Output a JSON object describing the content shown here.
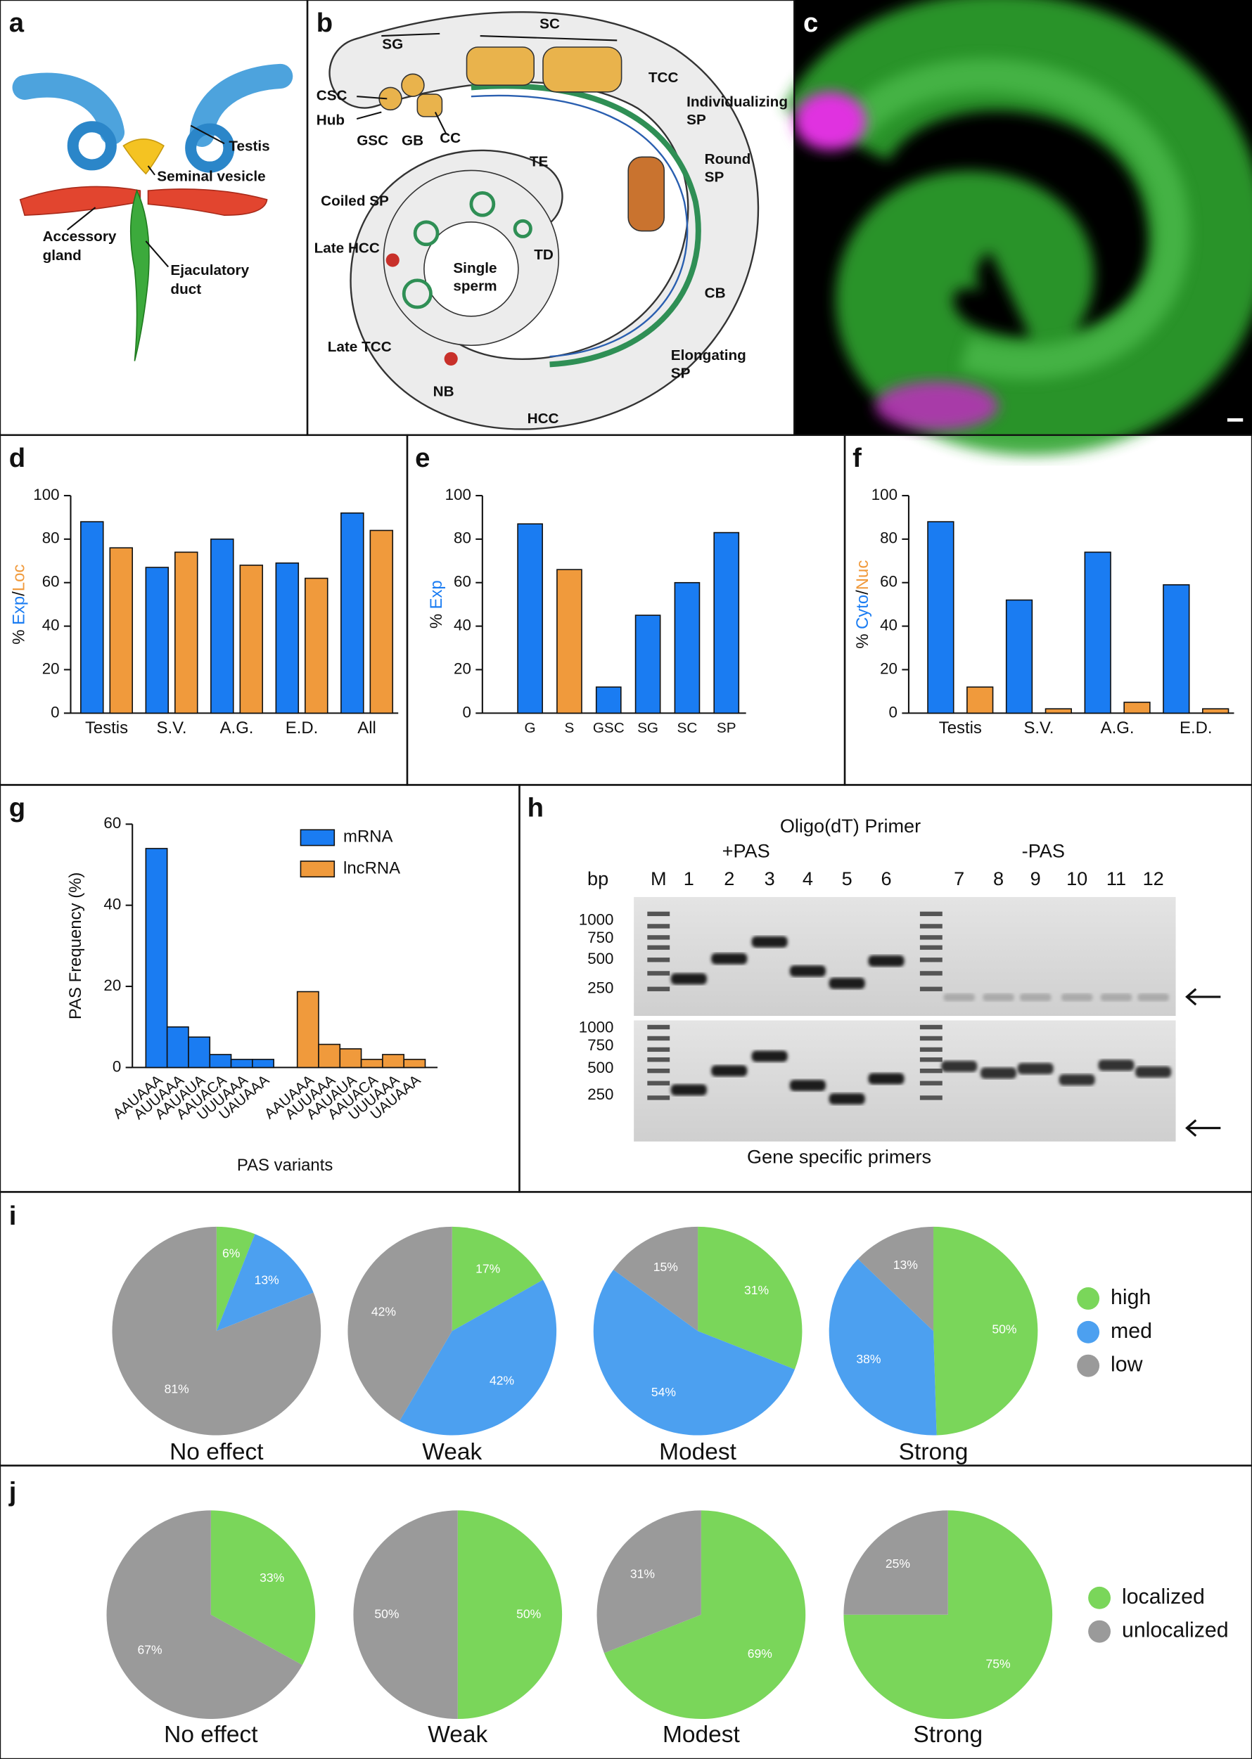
{
  "panels": [
    "a",
    "b",
    "c",
    "d",
    "e",
    "f",
    "g",
    "h",
    "i",
    "j"
  ],
  "diagram_a": {
    "testis": "Testis",
    "seminal_vesicle": "Seminal vesicle",
    "accessory_gland": [
      "Accessory",
      "gland"
    ],
    "ejaculatory_duct": [
      "Ejaculatory",
      "duct"
    ]
  },
  "diagram_b": {
    "labels": [
      "SG",
      "SC",
      "CSC",
      "Hub",
      "GSC",
      "GB",
      "CC",
      "TCC",
      [
        "Individualizing",
        "SP"
      ],
      [
        "Round",
        "SP"
      ],
      "TE",
      "Coiled SP",
      "Late HCC",
      [
        "Single",
        "sperm"
      ],
      "TD",
      "Late TCC",
      "CB",
      [
        "Elongating",
        "SP"
      ],
      "NB",
      "HCC"
    ]
  },
  "gel_h": {
    "title": "Oligo(dT) Primer",
    "plus": "+PAS",
    "minus": "-PAS",
    "bp": "bp",
    "marker": "M",
    "lanes": [
      "1",
      "2",
      "3",
      "4",
      "5",
      "6",
      "7",
      "8",
      "9",
      "10",
      "11",
      "12"
    ],
    "ladder": [
      "1000",
      "750",
      "500",
      "250"
    ],
    "footer": "Gene specific primers"
  },
  "chart_data": [
    {
      "type": "bar",
      "grouping": "by_category",
      "categories": [
        "Testis",
        "S.V.",
        "A.G.",
        "E.D.",
        "All"
      ],
      "series": [
        {
          "name": "Exp",
          "color": "#1a7cf2",
          "values": [
            88,
            67,
            80,
            69,
            92
          ]
        },
        {
          "name": "Loc",
          "color": "#f09a3c",
          "values": [
            76,
            74,
            68,
            62,
            84
          ]
        }
      ],
      "ylabel_prefix": "%",
      "ylabel_separator": "/",
      "ylim": [
        0,
        100
      ],
      "yticks": [
        0,
        20,
        40,
        60,
        80,
        100
      ]
    },
    {
      "type": "bar",
      "grouping": "by_category",
      "categories": [
        "G",
        "S",
        "GSC",
        "SG",
        "SC",
        "SP"
      ],
      "series": [
        {
          "name": "Exp",
          "color": "#1a7cf2",
          "values": [
            87,
            66,
            12,
            45,
            60,
            83
          ],
          "bar_colors": [
            "#1a7cf2",
            "#f09a3c",
            "#1a7cf2",
            "#1a7cf2",
            "#1a7cf2",
            "#1a7cf2"
          ]
        }
      ],
      "ylabel_prefix": "%",
      "ylim": [
        0,
        100
      ],
      "yticks": [
        0,
        20,
        40,
        60,
        80,
        100
      ]
    },
    {
      "type": "bar",
      "grouping": "by_category",
      "categories": [
        "Testis",
        "S.V.",
        "A.G.",
        "E.D."
      ],
      "series": [
        {
          "name": "Cyto",
          "color": "#1a7cf2",
          "values": [
            88,
            52,
            74,
            59
          ]
        },
        {
          "name": "Nuc",
          "color": "#f09a3c",
          "values": [
            12,
            2,
            5,
            2
          ]
        }
      ],
      "ylabel_prefix": "%",
      "ylabel_separator": "/",
      "ylim": [
        0,
        100
      ],
      "yticks": [
        0,
        20,
        40,
        60,
        80,
        100
      ]
    },
    {
      "type": "bar",
      "grouping": "by_series",
      "categories": [
        "AAUAAA",
        "AUUAAA",
        "AAUAUA",
        "AAUACA",
        "UUUAAA",
        "UAUAAA"
      ],
      "series": [
        {
          "name": "mRNA",
          "color": "#1a7cf2",
          "values": [
            54,
            10,
            7.5,
            3.2,
            2,
            2
          ]
        },
        {
          "name": "lncRNA",
          "color": "#f09a3c",
          "values": [
            18.7,
            5.7,
            4.6,
            2,
            3.2,
            2
          ]
        }
      ],
      "ylabel": "PAS Frequency (%)",
      "xlabel": "PAS variants",
      "ylim": [
        0,
        60
      ],
      "yticks": [
        0,
        20,
        40,
        60
      ],
      "legend": "upper right"
    },
    {
      "type": "pie",
      "categories": [
        "high",
        "med",
        "low"
      ],
      "colors": [
        "#7ad65a",
        "#4ca0f0",
        "#9a9a9a"
      ],
      "legend": "right",
      "pies": [
        {
          "name": "No effect",
          "values": [
            6,
            13,
            81
          ],
          "value_labels": [
            "6%",
            "13%",
            "81%"
          ]
        },
        {
          "name": "Weak",
          "values": [
            17,
            42,
            42
          ],
          "value_labels": [
            "17%",
            "42%",
            "42%"
          ]
        },
        {
          "name": "Modest",
          "values": [
            31,
            54,
            15
          ],
          "value_labels": [
            "31%",
            "54%",
            "15%"
          ]
        },
        {
          "name": "Strong",
          "values": [
            50,
            38,
            13
          ],
          "value_labels": [
            "50%",
            "38%",
            "13%"
          ]
        }
      ]
    },
    {
      "type": "pie",
      "categories": [
        "localized",
        "unlocalized"
      ],
      "colors": [
        "#7ad65a",
        "#9a9a9a"
      ],
      "legend": "right",
      "pies": [
        {
          "name": "No effect",
          "values": [
            33,
            67
          ],
          "value_labels": [
            "33%",
            "67%"
          ]
        },
        {
          "name": "Weak",
          "values": [
            50,
            50
          ],
          "value_labels": [
            "50%",
            "50%"
          ]
        },
        {
          "name": "Modest",
          "values": [
            69,
            31
          ],
          "value_labels": [
            "69%",
            "31%"
          ]
        },
        {
          "name": "Strong",
          "values": [
            75,
            25
          ],
          "value_labels": [
            "75%",
            "25%"
          ]
        }
      ]
    }
  ]
}
